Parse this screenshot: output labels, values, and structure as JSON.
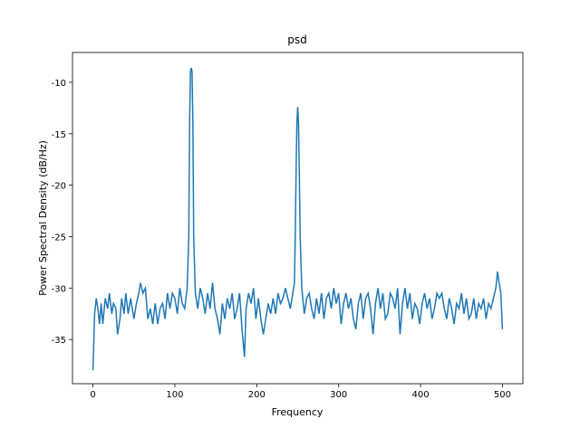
{
  "chart_data": {
    "type": "line",
    "title": "psd",
    "x_label": "Frequency",
    "y_label": "Power Spectral Density (dB/Hz)",
    "x": [
      0,
      2,
      4,
      6,
      8,
      10,
      12,
      15,
      18,
      20,
      23,
      25,
      28,
      30,
      33,
      35,
      38,
      40,
      43,
      46,
      50,
      53,
      56,
      58,
      61,
      64,
      67,
      70,
      73,
      76,
      79,
      82,
      85,
      88,
      91,
      94,
      97,
      100,
      103,
      106,
      109,
      112,
      115,
      117,
      118,
      119,
      120,
      121,
      122,
      123,
      125,
      128,
      131,
      134,
      137,
      140,
      143,
      146,
      149,
      152,
      155,
      158,
      161,
      164,
      167,
      170,
      173,
      176,
      179,
      182,
      185,
      187,
      190,
      193,
      196,
      199,
      202,
      205,
      208,
      211,
      214,
      217,
      220,
      223,
      226,
      229,
      232,
      235,
      238,
      241,
      244,
      246,
      247,
      248,
      249,
      250,
      251,
      252,
      253,
      255,
      258,
      261,
      264,
      267,
      270,
      273,
      276,
      279,
      282,
      285,
      288,
      291,
      294,
      297,
      300,
      303,
      306,
      309,
      312,
      315,
      318,
      321,
      324,
      327,
      330,
      333,
      336,
      339,
      342,
      345,
      348,
      351,
      354,
      357,
      360,
      363,
      366,
      369,
      372,
      375,
      378,
      381,
      384,
      387,
      390,
      393,
      396,
      399,
      402,
      405,
      408,
      411,
      414,
      417,
      420,
      423,
      426,
      429,
      432,
      435,
      438,
      441,
      444,
      447,
      450,
      453,
      456,
      459,
      462,
      465,
      468,
      471,
      474,
      477,
      480,
      483,
      486,
      489,
      492,
      494,
      496,
      498,
      500
    ],
    "series": [
      {
        "color": "#1f77b4",
        "values": [
          -38,
          -32.5,
          -31,
          -32,
          -33.5,
          -31.5,
          -33.5,
          -31,
          -32,
          -30.5,
          -32.5,
          -31.5,
          -32,
          -34.5,
          -33,
          -31,
          -32.5,
          -30.5,
          -32.5,
          -31,
          -33,
          -31.5,
          -30.5,
          -29.5,
          -30.5,
          -30,
          -33,
          -32,
          -33.5,
          -31.5,
          -33.5,
          -32,
          -31.5,
          -33,
          -30.5,
          -32,
          -30.5,
          -31,
          -32.5,
          -30,
          -31.5,
          -32,
          -30,
          -25,
          -14,
          -9,
          -8.6,
          -9,
          -14,
          -25,
          -30.5,
          -32,
          -30,
          -31,
          -32.5,
          -30.5,
          -32,
          -29.5,
          -32,
          -33,
          -34.5,
          -31.5,
          -33,
          -31,
          -32,
          -30.5,
          -33,
          -32,
          -30.5,
          -34,
          -36.7,
          -32,
          -30.5,
          -31.5,
          -30,
          -33,
          -31,
          -33,
          -34.5,
          -33,
          -31.5,
          -32.5,
          -31,
          -32.5,
          -30.5,
          -31.5,
          -31,
          -30,
          -31,
          -32,
          -30.5,
          -29.5,
          -25,
          -19,
          -14,
          -12.4,
          -14,
          -19,
          -25,
          -30,
          -32.5,
          -31,
          -30.5,
          -32,
          -33,
          -31,
          -32.5,
          -30.5,
          -33,
          -31,
          -30.5,
          -32,
          -30,
          -31.5,
          -30.5,
          -33.5,
          -31.5,
          -30.5,
          -32,
          -31,
          -33,
          -34,
          -31.5,
          -30.5,
          -33,
          -31,
          -30.5,
          -32,
          -34.5,
          -31.5,
          -30,
          -32,
          -30.5,
          -33,
          -32.5,
          -30.5,
          -31,
          -32,
          -30,
          -34.5,
          -31.5,
          -30,
          -32,
          -30.5,
          -33,
          -31.5,
          -32,
          -33.5,
          -31.5,
          -30.5,
          -32,
          -31,
          -33,
          -32,
          -30.5,
          -31,
          -30.5,
          -32,
          -33,
          -31,
          -32,
          -33.5,
          -31.5,
          -32,
          -30.5,
          -32.5,
          -31,
          -33,
          -32.5,
          -31,
          -33,
          -31.5,
          -32,
          -31,
          -33,
          -31.5,
          -32,
          -31,
          -30,
          -28.4,
          -29.5,
          -30.5,
          -34
        ]
      }
    ],
    "xlim": [
      -25,
      525
    ],
    "ylim": [
      -39.3,
      -7.1
    ],
    "xticks": [
      0,
      100,
      200,
      300,
      400,
      500
    ],
    "yticks": [
      -35,
      -30,
      -25,
      -20,
      -15,
      -10
    ]
  }
}
